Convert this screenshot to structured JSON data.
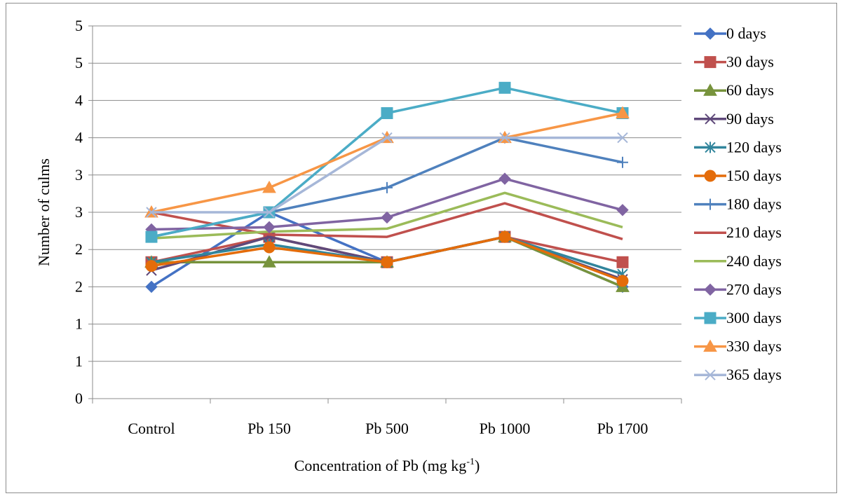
{
  "chart_data": {
    "type": "line",
    "title": "",
    "xlabel": "Concentration of Pb (mg kg",
    "xlabel_superscript": "-1",
    "xlabel_suffix": ")",
    "ylabel": "Number of culms",
    "categories": [
      "Control",
      "Pb 150",
      "Pb 500",
      "Pb 1000",
      "Pb 1700"
    ],
    "ylim": [
      0,
      5
    ],
    "y_tick_labels": [
      "0",
      "1",
      "1",
      "2",
      "2",
      "3",
      "3",
      "4",
      "4",
      "5",
      "5"
    ],
    "grid": "horizontal",
    "legend_position": "right",
    "series": [
      {
        "name": "0 days",
        "color": "#4472C4",
        "marker": "diamond",
        "values": [
          1.5,
          2.5,
          1.83,
          2.17,
          1.5
        ]
      },
      {
        "name": "30 days",
        "color": "#C0504D",
        "marker": "square",
        "values": [
          1.83,
          2.17,
          1.83,
          2.17,
          1.83
        ]
      },
      {
        "name": "60 days",
        "color": "#77933C",
        "marker": "triangle",
        "values": [
          1.83,
          1.83,
          1.83,
          2.17,
          1.5
        ]
      },
      {
        "name": "90 days",
        "color": "#5F497A",
        "marker": "x",
        "values": [
          1.72,
          2.17,
          1.83,
          2.17,
          1.6
        ]
      },
      {
        "name": "120 days",
        "color": "#31859C",
        "marker": "asterisk",
        "values": [
          1.83,
          2.07,
          1.83,
          2.17,
          1.67
        ]
      },
      {
        "name": "150 days",
        "color": "#E46C0A",
        "marker": "circle",
        "values": [
          1.78,
          2.03,
          1.83,
          2.17,
          1.58
        ]
      },
      {
        "name": "180 days",
        "color": "#4F81BD",
        "marker": "plus",
        "values": [
          2.17,
          2.5,
          2.83,
          3.5,
          3.17
        ]
      },
      {
        "name": "210 days",
        "color": "#C0504D",
        "marker": "none",
        "values": [
          2.5,
          2.2,
          2.17,
          2.62,
          2.14
        ]
      },
      {
        "name": "240 days",
        "color": "#9BBB59",
        "marker": "none",
        "values": [
          2.15,
          2.24,
          2.28,
          2.76,
          2.3
        ]
      },
      {
        "name": "270 days",
        "color": "#8064A2",
        "marker": "diamond",
        "values": [
          2.27,
          2.3,
          2.43,
          2.95,
          2.53
        ]
      },
      {
        "name": "300 days",
        "color": "#4BACC6",
        "marker": "square",
        "values": [
          2.17,
          2.5,
          3.83,
          4.17,
          3.83
        ]
      },
      {
        "name": "330 days",
        "color": "#F79646",
        "marker": "triangle",
        "values": [
          2.5,
          2.83,
          3.5,
          3.5,
          3.83
        ]
      },
      {
        "name": "365 days",
        "color": "#A6B7D8",
        "marker": "x",
        "values": [
          2.5,
          2.5,
          3.5,
          3.5,
          3.5
        ]
      }
    ]
  }
}
